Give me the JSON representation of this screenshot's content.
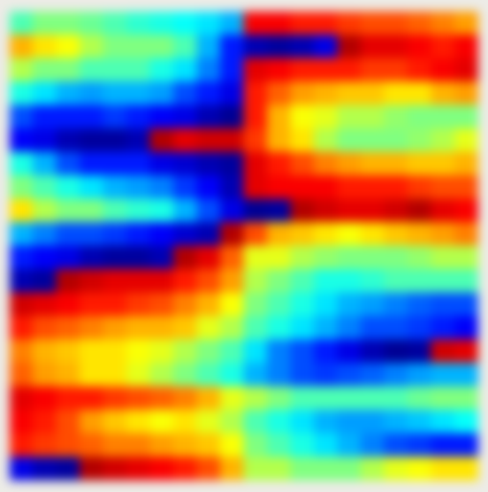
{
  "chart_data": {
    "type": "heatmap",
    "xlim": [
      0,
      20
    ],
    "ylim": [
      0,
      20
    ],
    "zlim": [
      0,
      1
    ],
    "tick_labels": false,
    "grid": false,
    "cells": [
      [
        0.45,
        0.5,
        0.5,
        0.48,
        0.45,
        0.42,
        0.4,
        0.38,
        0.35,
        0.3,
        0.88,
        0.88,
        0.85,
        0.85,
        0.82,
        0.8,
        0.8,
        0.78,
        0.75,
        0.72
      ],
      [
        0.7,
        0.65,
        0.62,
        0.55,
        0.5,
        0.5,
        0.5,
        0.45,
        0.3,
        0.15,
        0.05,
        0.03,
        0.05,
        0.1,
        0.95,
        0.9,
        0.9,
        0.88,
        0.85,
        0.88
      ],
      [
        0.55,
        0.5,
        0.5,
        0.45,
        0.45,
        0.45,
        0.4,
        0.35,
        0.25,
        0.15,
        0.9,
        0.88,
        0.85,
        0.85,
        0.85,
        0.82,
        0.82,
        0.85,
        0.88,
        0.9
      ],
      [
        0.4,
        0.35,
        0.3,
        0.28,
        0.3,
        0.3,
        0.28,
        0.2,
        0.15,
        0.1,
        0.85,
        0.78,
        0.72,
        0.7,
        0.68,
        0.68,
        0.65,
        0.65,
        0.7,
        0.72
      ],
      [
        0.2,
        0.15,
        0.15,
        0.15,
        0.18,
        0.15,
        0.12,
        0.1,
        0.05,
        0.02,
        0.85,
        0.7,
        0.62,
        0.6,
        0.55,
        0.55,
        0.52,
        0.5,
        0.5,
        0.5
      ],
      [
        0.12,
        0.1,
        0.05,
        0.03,
        0.03,
        0.05,
        0.95,
        0.9,
        0.92,
        0.92,
        0.82,
        0.7,
        0.65,
        0.55,
        0.5,
        0.5,
        0.5,
        0.52,
        0.55,
        0.6
      ],
      [
        0.4,
        0.3,
        0.2,
        0.15,
        0.15,
        0.15,
        0.1,
        0.08,
        0.05,
        0.03,
        0.9,
        0.85,
        0.8,
        0.75,
        0.72,
        0.7,
        0.7,
        0.68,
        0.68,
        0.7
      ],
      [
        0.5,
        0.45,
        0.4,
        0.35,
        0.3,
        0.28,
        0.25,
        0.18,
        0.12,
        0.05,
        0.9,
        0.88,
        0.88,
        0.88,
        0.85,
        0.85,
        0.85,
        0.82,
        0.8,
        0.8
      ],
      [
        0.65,
        0.55,
        0.5,
        0.5,
        0.45,
        0.42,
        0.4,
        0.3,
        0.2,
        0.1,
        0.02,
        0.03,
        0.95,
        0.92,
        0.9,
        0.9,
        0.92,
        0.95,
        0.9,
        0.88
      ],
      [
        0.3,
        0.25,
        0.2,
        0.2,
        0.18,
        0.15,
        0.12,
        0.08,
        0.05,
        0.95,
        0.8,
        0.7,
        0.68,
        0.65,
        0.62,
        0.65,
        0.68,
        0.7,
        0.72,
        0.75
      ],
      [
        0.15,
        0.12,
        0.1,
        0.05,
        0.03,
        0.03,
        0.05,
        0.95,
        0.9,
        0.78,
        0.6,
        0.6,
        0.55,
        0.52,
        0.5,
        0.5,
        0.5,
        0.52,
        0.55,
        0.55
      ],
      [
        0.05,
        0.03,
        0.95,
        0.92,
        0.9,
        0.9,
        0.9,
        0.85,
        0.8,
        0.72,
        0.55,
        0.5,
        0.45,
        0.4,
        0.4,
        0.42,
        0.45,
        0.45,
        0.45,
        0.45
      ],
      [
        0.92,
        0.9,
        0.88,
        0.85,
        0.85,
        0.82,
        0.8,
        0.75,
        0.7,
        0.62,
        0.5,
        0.45,
        0.4,
        0.35,
        0.3,
        0.28,
        0.25,
        0.22,
        0.2,
        0.2
      ],
      [
        0.85,
        0.8,
        0.78,
        0.75,
        0.72,
        0.7,
        0.7,
        0.68,
        0.6,
        0.55,
        0.45,
        0.4,
        0.35,
        0.3,
        0.25,
        0.2,
        0.2,
        0.18,
        0.15,
        0.12
      ],
      [
        0.75,
        0.7,
        0.68,
        0.65,
        0.65,
        0.62,
        0.6,
        0.55,
        0.5,
        0.45,
        0.35,
        0.25,
        0.2,
        0.15,
        0.1,
        0.05,
        0.02,
        0.03,
        0.92,
        0.9
      ],
      [
        0.78,
        0.72,
        0.7,
        0.65,
        0.65,
        0.6,
        0.55,
        0.5,
        0.45,
        0.4,
        0.3,
        0.25,
        0.2,
        0.18,
        0.2,
        0.22,
        0.25,
        0.28,
        0.3,
        0.3
      ],
      [
        0.9,
        0.88,
        0.85,
        0.85,
        0.82,
        0.8,
        0.78,
        0.75,
        0.7,
        0.6,
        0.55,
        0.5,
        0.45,
        0.45,
        0.45,
        0.45,
        0.45,
        0.48,
        0.5,
        0.5
      ],
      [
        0.88,
        0.85,
        0.8,
        0.72,
        0.68,
        0.65,
        0.62,
        0.65,
        0.6,
        0.55,
        0.45,
        0.4,
        0.35,
        0.3,
        0.28,
        0.28,
        0.3,
        0.32,
        0.35,
        0.38
      ],
      [
        0.85,
        0.82,
        0.8,
        0.78,
        0.75,
        0.75,
        0.72,
        0.7,
        0.68,
        0.62,
        0.5,
        0.45,
        0.4,
        0.35,
        0.3,
        0.25,
        0.2,
        0.18,
        0.15,
        0.15
      ],
      [
        0.1,
        0.05,
        0.03,
        0.95,
        0.92,
        0.9,
        0.88,
        0.85,
        0.8,
        0.7,
        0.55,
        0.55,
        0.5,
        0.5,
        0.5,
        0.55,
        0.6,
        0.62,
        0.65,
        0.65
      ]
    ]
  }
}
